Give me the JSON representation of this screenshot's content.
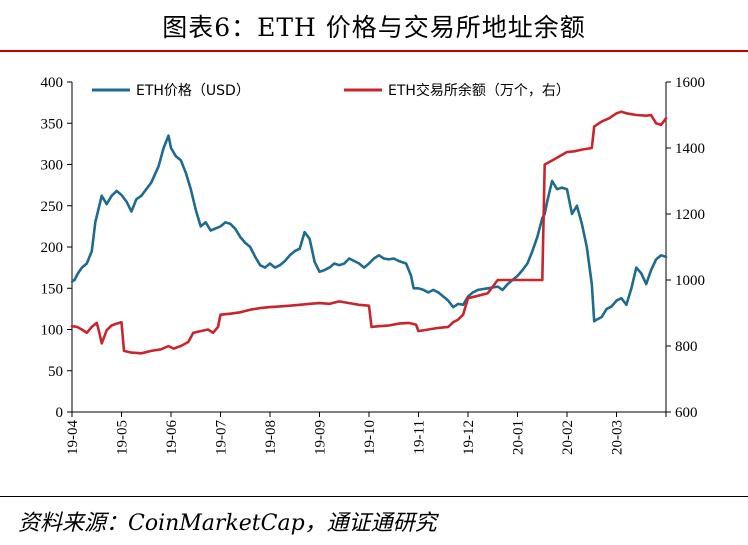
{
  "title": "图表6：ETH 价格与交易所地址余额",
  "source": "资料来源：CoinMarketCap，通证通研究",
  "chart_data": {
    "type": "line",
    "x_tick_labels": [
      "19-04",
      "19-05",
      "19-06",
      "19-07",
      "19-08",
      "19-09",
      "19-10",
      "19-11",
      "19-12",
      "20-01",
      "20-02",
      "20-03"
    ],
    "y_left": {
      "lim": [
        0,
        400
      ],
      "ticks": [
        0,
        50,
        100,
        150,
        200,
        250,
        300,
        350,
        400
      ]
    },
    "y_right": {
      "lim": [
        600,
        1600
      ],
      "ticks": [
        600,
        800,
        1000,
        1200,
        1400,
        1600
      ]
    },
    "grid": false,
    "legend": "top",
    "series": [
      {
        "name": "ETH价格（USD）",
        "axis": "left",
        "color": "#1f6a8f",
        "points": [
          [
            0.0,
            158
          ],
          [
            0.05,
            160
          ],
          [
            0.12,
            168
          ],
          [
            0.2,
            175
          ],
          [
            0.3,
            180
          ],
          [
            0.4,
            195
          ],
          [
            0.47,
            230
          ],
          [
            0.6,
            262
          ],
          [
            0.7,
            252
          ],
          [
            0.8,
            262
          ],
          [
            0.9,
            268
          ],
          [
            1.0,
            263
          ],
          [
            1.1,
            255
          ],
          [
            1.2,
            243
          ],
          [
            1.3,
            258
          ],
          [
            1.4,
            262
          ],
          [
            1.5,
            270
          ],
          [
            1.6,
            278
          ],
          [
            1.75,
            298
          ],
          [
            1.85,
            320
          ],
          [
            1.95,
            335
          ],
          [
            2.0,
            320
          ],
          [
            2.1,
            310
          ],
          [
            2.2,
            305
          ],
          [
            2.3,
            290
          ],
          [
            2.4,
            270
          ],
          [
            2.5,
            245
          ],
          [
            2.6,
            225
          ],
          [
            2.7,
            230
          ],
          [
            2.8,
            220
          ],
          [
            3.0,
            225
          ],
          [
            3.1,
            230
          ],
          [
            3.2,
            228
          ],
          [
            3.3,
            222
          ],
          [
            3.4,
            212
          ],
          [
            3.5,
            205
          ],
          [
            3.6,
            200
          ],
          [
            3.7,
            188
          ],
          [
            3.8,
            178
          ],
          [
            3.9,
            175
          ],
          [
            4.0,
            180
          ],
          [
            4.1,
            175
          ],
          [
            4.2,
            178
          ],
          [
            4.3,
            183
          ],
          [
            4.4,
            190
          ],
          [
            4.5,
            195
          ],
          [
            4.6,
            198
          ],
          [
            4.7,
            218
          ],
          [
            4.8,
            210
          ],
          [
            4.9,
            182
          ],
          [
            5.0,
            170
          ],
          [
            5.1,
            172
          ],
          [
            5.2,
            175
          ],
          [
            5.3,
            180
          ],
          [
            5.4,
            178
          ],
          [
            5.5,
            180
          ],
          [
            5.6,
            186
          ],
          [
            5.7,
            183
          ],
          [
            5.8,
            180
          ],
          [
            5.9,
            175
          ],
          [
            6.0,
            180
          ],
          [
            6.1,
            186
          ],
          [
            6.2,
            190
          ],
          [
            6.3,
            186
          ],
          [
            6.4,
            185
          ],
          [
            6.5,
            186
          ],
          [
            6.6,
            183
          ],
          [
            6.75,
            180
          ],
          [
            6.85,
            165
          ],
          [
            6.9,
            150
          ],
          [
            7.0,
            150
          ],
          [
            7.1,
            148
          ],
          [
            7.2,
            145
          ],
          [
            7.3,
            148
          ],
          [
            7.4,
            145
          ],
          [
            7.5,
            140
          ],
          [
            7.6,
            135
          ],
          [
            7.7,
            127
          ],
          [
            7.8,
            131
          ],
          [
            7.9,
            130
          ],
          [
            8.0,
            140
          ],
          [
            8.1,
            145
          ],
          [
            8.2,
            148
          ],
          [
            8.4,
            150
          ],
          [
            8.6,
            152
          ],
          [
            8.7,
            148
          ],
          [
            8.8,
            155
          ],
          [
            8.9,
            160
          ],
          [
            9.0,
            165
          ],
          [
            9.1,
            172
          ],
          [
            9.2,
            180
          ],
          [
            9.3,
            195
          ],
          [
            9.4,
            212
          ],
          [
            9.5,
            235
          ],
          [
            9.55,
            240
          ],
          [
            9.6,
            255
          ],
          [
            9.65,
            268
          ],
          [
            9.7,
            280
          ],
          [
            9.8,
            270
          ],
          [
            9.9,
            272
          ],
          [
            10.0,
            270
          ],
          [
            10.1,
            240
          ],
          [
            10.2,
            250
          ],
          [
            10.3,
            228
          ],
          [
            10.4,
            200
          ],
          [
            10.5,
            155
          ],
          [
            10.55,
            110
          ],
          [
            10.6,
            112
          ],
          [
            10.7,
            115
          ],
          [
            10.8,
            125
          ],
          [
            10.9,
            128
          ],
          [
            11.0,
            135
          ],
          [
            11.1,
            138
          ],
          [
            11.2,
            130
          ],
          [
            11.3,
            150
          ],
          [
            11.4,
            175
          ],
          [
            11.5,
            168
          ],
          [
            11.6,
            155
          ],
          [
            11.7,
            172
          ],
          [
            11.8,
            185
          ],
          [
            11.9,
            190
          ],
          [
            12.0,
            188
          ]
        ]
      },
      {
        "name": "ETH交易所余额（万个，右）",
        "axis": "right",
        "color": "#c8262e",
        "points": [
          [
            0.0,
            860
          ],
          [
            0.1,
            858
          ],
          [
            0.2,
            850
          ],
          [
            0.3,
            840
          ],
          [
            0.4,
            858
          ],
          [
            0.5,
            870
          ],
          [
            0.55,
            842
          ],
          [
            0.6,
            808
          ],
          [
            0.7,
            848
          ],
          [
            0.8,
            862
          ],
          [
            0.9,
            868
          ],
          [
            1.0,
            872
          ],
          [
            1.05,
            785
          ],
          [
            1.2,
            780
          ],
          [
            1.4,
            778
          ],
          [
            1.6,
            785
          ],
          [
            1.8,
            790
          ],
          [
            1.95,
            800
          ],
          [
            2.05,
            792
          ],
          [
            2.2,
            800
          ],
          [
            2.35,
            812
          ],
          [
            2.45,
            840
          ],
          [
            2.6,
            845
          ],
          [
            2.75,
            850
          ],
          [
            2.85,
            840
          ],
          [
            2.95,
            858
          ],
          [
            3.0,
            895
          ],
          [
            3.2,
            898
          ],
          [
            3.4,
            902
          ],
          [
            3.6,
            910
          ],
          [
            3.8,
            915
          ],
          [
            4.0,
            918
          ],
          [
            4.2,
            920
          ],
          [
            4.4,
            922
          ],
          [
            4.6,
            925
          ],
          [
            4.8,
            928
          ],
          [
            5.0,
            930
          ],
          [
            5.2,
            928
          ],
          [
            5.4,
            935
          ],
          [
            5.6,
            930
          ],
          [
            5.8,
            925
          ],
          [
            6.0,
            922
          ],
          [
            6.05,
            858
          ],
          [
            6.2,
            860
          ],
          [
            6.4,
            862
          ],
          [
            6.6,
            868
          ],
          [
            6.8,
            870
          ],
          [
            6.95,
            865
          ],
          [
            7.0,
            845
          ],
          [
            7.2,
            850
          ],
          [
            7.4,
            855
          ],
          [
            7.6,
            858
          ],
          [
            7.7,
            872
          ],
          [
            7.8,
            880
          ],
          [
            7.9,
            895
          ],
          [
            8.0,
            945
          ],
          [
            8.2,
            952
          ],
          [
            8.4,
            960
          ],
          [
            8.6,
            1000
          ],
          [
            8.8,
            1000
          ],
          [
            9.0,
            1000
          ],
          [
            9.2,
            1000
          ],
          [
            9.4,
            1000
          ],
          [
            9.5,
            1000
          ],
          [
            9.55,
            1350
          ],
          [
            9.7,
            1362
          ],
          [
            9.85,
            1375
          ],
          [
            10.0,
            1388
          ],
          [
            10.15,
            1390
          ],
          [
            10.3,
            1395
          ],
          [
            10.5,
            1400
          ],
          [
            10.55,
            1465
          ],
          [
            10.7,
            1480
          ],
          [
            10.85,
            1490
          ],
          [
            11.0,
            1505
          ],
          [
            11.1,
            1510
          ],
          [
            11.2,
            1505
          ],
          [
            11.4,
            1500
          ],
          [
            11.6,
            1498
          ],
          [
            11.7,
            1500
          ],
          [
            11.8,
            1475
          ],
          [
            11.9,
            1470
          ],
          [
            12.0,
            1490
          ]
        ]
      }
    ]
  }
}
